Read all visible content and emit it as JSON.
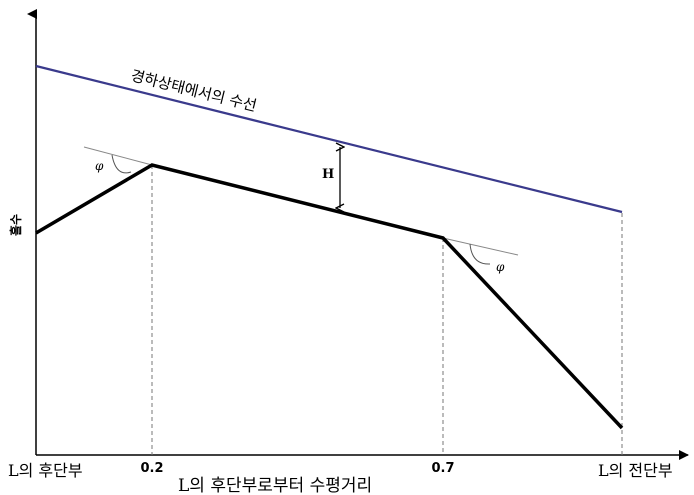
{
  "diagram": {
    "waterline_label": "경하상태에서의 수선",
    "height_symbol": "H",
    "y_axis_label": "흘수",
    "angle_symbol_left": "φ",
    "angle_symbol_right": "φ",
    "x_axis_title": "L의 후단부로부터 수평거리",
    "x_ticks": {
      "aft_end": "L의 후단부",
      "p02": "0.2",
      "p07": "0.7",
      "fwd_end": "L의 전단부"
    }
  },
  "colors": {
    "waterline": "#3a3a8c",
    "profile": "#000000",
    "axis": "#000000",
    "guide": "#777777"
  }
}
